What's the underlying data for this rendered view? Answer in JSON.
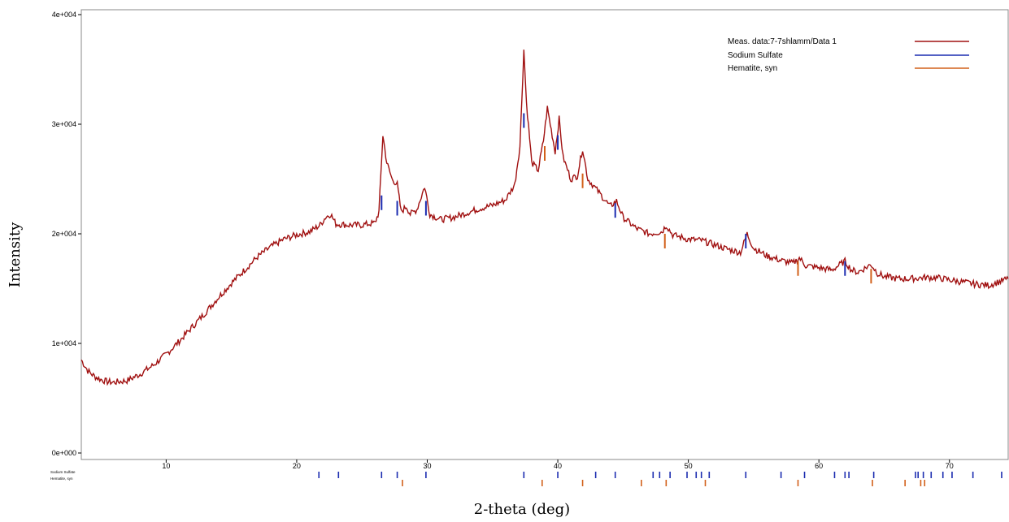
{
  "chart_data": {
    "type": "line",
    "title": "",
    "xlabel": "2-theta (deg)",
    "ylabel": "Intensity",
    "xlim": [
      3.5,
      74.5
    ],
    "ylim": [
      0,
      40000
    ],
    "x_ticks": [
      10,
      20,
      30,
      40,
      50,
      60,
      70
    ],
    "y_ticks": [
      {
        "value": 0,
        "label": "0e+000"
      },
      {
        "value": 10000,
        "label": "1e+004"
      },
      {
        "value": 20000,
        "label": "2e+004"
      },
      {
        "value": 30000,
        "label": "3e+004"
      },
      {
        "value": 40000,
        "label": "4e+004"
      }
    ],
    "legend_position": "top-right",
    "series": [
      {
        "name": "Meas. data:7-7shlamm/Data 1",
        "color": "#a01010",
        "points": [
          [
            3.5,
            8500
          ],
          [
            4.0,
            7500
          ],
          [
            4.5,
            7000
          ],
          [
            5.0,
            6700
          ],
          [
            5.5,
            6500
          ],
          [
            6.0,
            6450
          ],
          [
            7.0,
            6600
          ],
          [
            8.0,
            7200
          ],
          [
            9.0,
            8000
          ],
          [
            10.0,
            9000
          ],
          [
            11.0,
            10200
          ],
          [
            12.0,
            11500
          ],
          [
            13.0,
            12800
          ],
          [
            14.0,
            14200
          ],
          [
            15.0,
            15500
          ],
          [
            16.0,
            16700
          ],
          [
            17.0,
            17900
          ],
          [
            18.0,
            18800
          ],
          [
            19.0,
            19500
          ],
          [
            20.0,
            19900
          ],
          [
            21.0,
            20200
          ],
          [
            21.8,
            20800
          ],
          [
            22.2,
            21500
          ],
          [
            22.6,
            21800
          ],
          [
            23.0,
            20900
          ],
          [
            24.0,
            20800
          ],
          [
            25.0,
            20800
          ],
          [
            26.0,
            21000
          ],
          [
            26.3,
            22000
          ],
          [
            26.6,
            29000
          ],
          [
            26.9,
            26500
          ],
          [
            27.3,
            25000
          ],
          [
            27.7,
            24500
          ],
          [
            28.0,
            22000
          ],
          [
            28.4,
            22500
          ],
          [
            28.7,
            21800
          ],
          [
            29.2,
            22200
          ],
          [
            29.8,
            24300
          ],
          [
            30.2,
            21800
          ],
          [
            31.0,
            21300
          ],
          [
            32.0,
            21500
          ],
          [
            33.0,
            21900
          ],
          [
            34.0,
            22300
          ],
          [
            35.0,
            22600
          ],
          [
            36.0,
            23100
          ],
          [
            36.7,
            24500
          ],
          [
            37.1,
            28000
          ],
          [
            37.4,
            36800
          ],
          [
            37.6,
            32000
          ],
          [
            38.0,
            26500
          ],
          [
            38.5,
            25800
          ],
          [
            38.9,
            28500
          ],
          [
            39.2,
            31500
          ],
          [
            39.5,
            29500
          ],
          [
            39.8,
            27500
          ],
          [
            40.1,
            30500
          ],
          [
            40.4,
            27000
          ],
          [
            41.0,
            25000
          ],
          [
            41.5,
            25300
          ],
          [
            41.9,
            27800
          ],
          [
            42.3,
            25000
          ],
          [
            43.0,
            24000
          ],
          [
            44.0,
            22500
          ],
          [
            44.5,
            23000
          ],
          [
            45.0,
            21500
          ],
          [
            46.0,
            20500
          ],
          [
            47.0,
            20000
          ],
          [
            48.0,
            20200
          ],
          [
            48.3,
            20800
          ],
          [
            48.8,
            19900
          ],
          [
            50.0,
            19500
          ],
          [
            51.0,
            19400
          ],
          [
            52.0,
            19000
          ],
          [
            53.0,
            18600
          ],
          [
            54.0,
            18300
          ],
          [
            54.5,
            20000
          ],
          [
            55.0,
            18700
          ],
          [
            56.0,
            18000
          ],
          [
            57.0,
            17600
          ],
          [
            58.0,
            17300
          ],
          [
            58.5,
            17800
          ],
          [
            59.0,
            17100
          ],
          [
            60.0,
            16900
          ],
          [
            61.0,
            16700
          ],
          [
            62.0,
            17500
          ],
          [
            62.5,
            16700
          ],
          [
            63.0,
            16500
          ],
          [
            64.0,
            17200
          ],
          [
            64.5,
            16400
          ],
          [
            65.0,
            16100
          ],
          [
            66.0,
            15900
          ],
          [
            67.0,
            15900
          ],
          [
            68.0,
            16000
          ],
          [
            69.0,
            16000
          ],
          [
            70.0,
            15800
          ],
          [
            71.0,
            15600
          ],
          [
            72.0,
            15400
          ],
          [
            73.0,
            15300
          ],
          [
            74.0,
            15700
          ],
          [
            74.5,
            15900
          ]
        ]
      },
      {
        "name": "Sodium Sulfate",
        "color": "#1c2db0",
        "stick_peaks": [
          [
            26.5,
            23500
          ],
          [
            27.7,
            23000
          ],
          [
            29.9,
            23000
          ],
          [
            37.4,
            31000
          ],
          [
            40.0,
            29000
          ],
          [
            44.4,
            22800
          ],
          [
            54.4,
            20000
          ],
          [
            62.0,
            17500
          ]
        ],
        "reference_positions": [
          21.7,
          23.2,
          26.5,
          27.7,
          29.9,
          37.4,
          40.0,
          42.9,
          44.4,
          47.3,
          47.8,
          48.6,
          49.9,
          50.6,
          51.0,
          51.6,
          54.4,
          57.1,
          58.9,
          61.2,
          62.0,
          62.3,
          64.2,
          67.4,
          67.6,
          68.0,
          68.6,
          69.5,
          70.2,
          71.8,
          74.0
        ]
      },
      {
        "name": "Hematite, syn",
        "color": "#d2601a",
        "stick_peaks": [
          [
            39.0,
            28000
          ],
          [
            41.9,
            25500
          ],
          [
            48.2,
            20000
          ],
          [
            58.4,
            17500
          ],
          [
            64.0,
            16800
          ]
        ],
        "reference_positions": [
          28.1,
          38.8,
          41.9,
          46.4,
          48.3,
          51.3,
          58.4,
          64.1,
          66.6,
          67.8,
          68.1
        ]
      }
    ],
    "reference_row_labels": [
      "Sodium Sulfate",
      "Hematite, syn"
    ]
  }
}
